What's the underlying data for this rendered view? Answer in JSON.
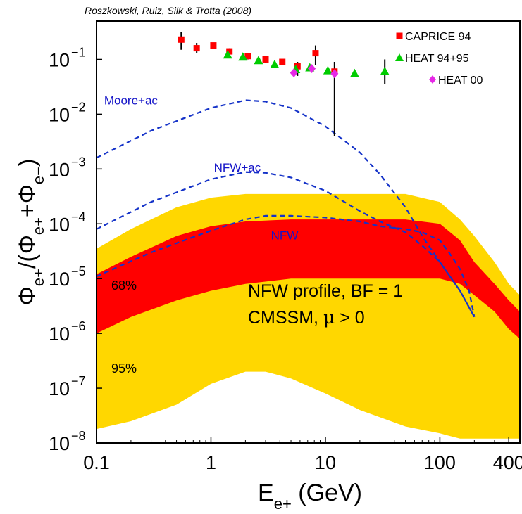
{
  "credit": "Roszkowski, Ruiz, Silk & Trotta (2008)",
  "chart_data": {
    "type": "scatter",
    "x_scale": "log",
    "y_scale": "log",
    "xlim": [
      0.1,
      500
    ],
    "ylim": [
      1e-08,
      0.5
    ],
    "x_ticks": [
      {
        "value": 0.1,
        "label": "0.1"
      },
      {
        "value": 1,
        "label": "1"
      },
      {
        "value": 10,
        "label": "10"
      },
      {
        "value": 100,
        "label": "100"
      },
      {
        "value": 400,
        "label": "400"
      }
    ],
    "y_ticks": [
      {
        "value": 1e-08,
        "base": "10",
        "exp": "−8"
      },
      {
        "value": 1e-07,
        "base": "10",
        "exp": "−7"
      },
      {
        "value": 1e-06,
        "base": "10",
        "exp": "−6"
      },
      {
        "value": 1e-05,
        "base": "10",
        "exp": "−5"
      },
      {
        "value": 0.0001,
        "base": "10",
        "exp": "−4"
      },
      {
        "value": 0.001,
        "base": "10",
        "exp": "−3"
      },
      {
        "value": 0.01,
        "base": "10",
        "exp": "−2"
      },
      {
        "value": 0.1,
        "base": "10",
        "exp": "−1"
      }
    ],
    "xlabel": {
      "main": "E",
      "sub": "e+",
      "rest": " (GeV)"
    },
    "ylabel": {
      "phi": "Φ",
      "sub1": "e+",
      "mid": "/(Φ",
      "sub2": "e+",
      "plus": "+Φ",
      "sub3": "e−",
      "end": ")"
    },
    "bands": [
      {
        "name": "95%",
        "color": "#ffd700",
        "x": [
          0.1,
          0.2,
          0.5,
          1,
          2,
          3,
          5,
          10,
          20,
          50,
          100,
          150,
          200,
          300,
          400,
          500
        ],
        "upper": [
          3.5e-05,
          8e-05,
          0.0002,
          0.0003,
          0.00035,
          0.00035,
          0.00035,
          0.00035,
          0.00035,
          0.00035,
          0.00025,
          0.00012,
          6e-05,
          2e-05,
          8e-06,
          5e-06
        ],
        "lower": [
          1.8e-08,
          2.5e-08,
          5e-08,
          1.2e-07,
          2e-07,
          2e-07,
          1.5e-07,
          8e-08,
          4e-08,
          2e-08,
          1.5e-08,
          1.2e-08,
          1.2e-08,
          1.2e-08,
          1.2e-08,
          1.2e-08
        ]
      },
      {
        "name": "68%",
        "color": "#ff0000",
        "x": [
          0.1,
          0.2,
          0.5,
          1,
          2,
          5,
          10,
          20,
          50,
          100,
          150,
          200,
          300,
          400,
          500
        ],
        "upper": [
          1.2e-05,
          2.5e-05,
          6e-05,
          9e-05,
          0.00011,
          0.00012,
          0.00012,
          0.00012,
          0.00012,
          0.0001,
          5e-05,
          2e-05,
          8e-06,
          4e-06,
          2.5e-06
        ],
        "lower": [
          1e-06,
          2e-06,
          4e-06,
          6e-06,
          8e-06,
          1e-05,
          1e-05,
          1e-05,
          1e-05,
          1e-05,
          8e-06,
          5e-06,
          2.5e-06,
          1.2e-06,
          8e-07
        ]
      }
    ],
    "curves": [
      {
        "name": "Moore+ac",
        "color": "#1432c8",
        "x": [
          0.1,
          0.3,
          1,
          2,
          3,
          5,
          10,
          20,
          30,
          50,
          70,
          100,
          150,
          200
        ],
        "y": [
          0.0016,
          0.005,
          0.013,
          0.018,
          0.017,
          0.013,
          0.006,
          0.002,
          0.0008,
          0.0002,
          6e-05,
          2e-05,
          6e-06,
          2e-06
        ]
      },
      {
        "name": "NFW+ac",
        "color": "#1432c8",
        "x": [
          0.1,
          0.3,
          1,
          2,
          3,
          5,
          10,
          20,
          30,
          50,
          70,
          100,
          150,
          200
        ],
        "y": [
          8e-05,
          0.00025,
          0.00065,
          0.00088,
          0.00085,
          0.0007,
          0.0004,
          0.00017,
          0.00011,
          7e-05,
          4e-05,
          2e-05,
          6e-06,
          2e-06
        ]
      },
      {
        "name": "NFW",
        "color": "#1432c8",
        "x": [
          0.1,
          0.3,
          1,
          2,
          3,
          5,
          10,
          20,
          30,
          50,
          70,
          100,
          120,
          150,
          180,
          200
        ],
        "y": [
          1.1e-05,
          3e-05,
          7.5e-05,
          0.00012,
          0.00014,
          0.00014,
          0.00013,
          0.00011,
          9e-05,
          8e-05,
          7e-05,
          5e-05,
          3e-05,
          1.5e-05,
          6e-06,
          2e-06
        ]
      }
    ],
    "series": [
      {
        "name": "CAPRICE 94",
        "color": "#ff0000",
        "marker": "square",
        "points": [
          {
            "x": 0.55,
            "y": 0.23,
            "lo": 0.15,
            "hi": 0.32
          },
          {
            "x": 0.75,
            "y": 0.16,
            "lo": 0.13,
            "hi": 0.2
          },
          {
            "x": 1.05,
            "y": 0.18,
            "lo": 0.16,
            "hi": 0.2
          },
          {
            "x": 1.45,
            "y": 0.14,
            "lo": 0.12,
            "hi": 0.16
          },
          {
            "x": 2.1,
            "y": 0.115,
            "lo": 0.1,
            "hi": 0.13
          },
          {
            "x": 3.0,
            "y": 0.1,
            "lo": 0.085,
            "hi": 0.115
          },
          {
            "x": 4.2,
            "y": 0.09,
            "lo": 0.08,
            "hi": 0.1
          },
          {
            "x": 5.7,
            "y": 0.075,
            "lo": 0.05,
            "hi": 0.09
          },
          {
            "x": 8.2,
            "y": 0.13,
            "lo": 0.08,
            "hi": 0.18
          },
          {
            "x": 12.0,
            "y": 0.06,
            "lo": 0.004,
            "hi": 0.09
          }
        ]
      },
      {
        "name": "HEAT 94+95",
        "color": "#00cc00",
        "marker": "triangle",
        "points": [
          {
            "x": 1.4,
            "y": 0.12
          },
          {
            "x": 1.9,
            "y": 0.11
          },
          {
            "x": 2.6,
            "y": 0.095
          },
          {
            "x": 3.6,
            "y": 0.08
          },
          {
            "x": 5.5,
            "y": 0.065
          },
          {
            "x": 7.3,
            "y": 0.07
          },
          {
            "x": 10.5,
            "y": 0.062
          },
          {
            "x": 18.0,
            "y": 0.055
          },
          {
            "x": 33.0,
            "y": 0.06,
            "lo": 0.035,
            "hi": 0.1
          }
        ]
      },
      {
        "name": "HEAT 00",
        "color": "#e628e6",
        "marker": "diamond",
        "points": [
          {
            "x": 5.3,
            "y": 0.057
          },
          {
            "x": 7.6,
            "y": 0.068
          },
          {
            "x": 12.0,
            "y": 0.055
          }
        ]
      }
    ],
    "legend_position": "top-right",
    "annotations": {
      "band68": "68%",
      "band95": "95%",
      "line1": "NFW profile, BF = 1",
      "line2_pre": "CMSSM, ",
      "mu": "μ",
      "line2_post": " > 0"
    }
  }
}
